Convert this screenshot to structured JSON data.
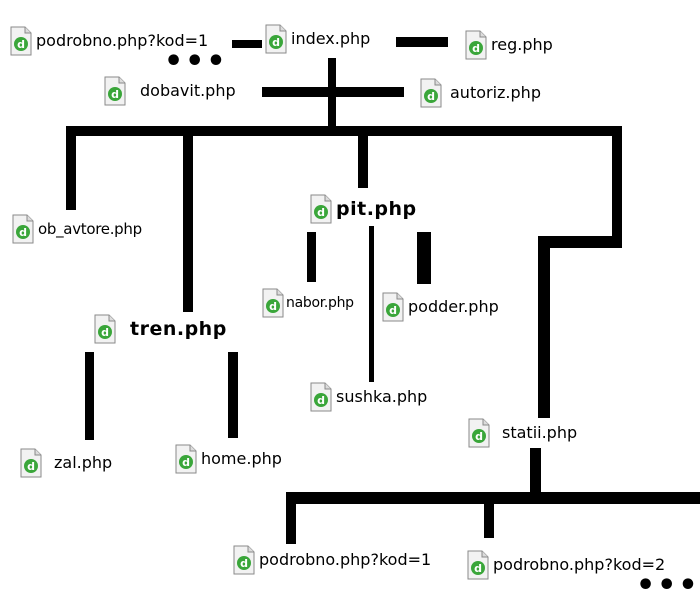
{
  "nodes": {
    "podrobno_top": "podrobno.php?kod=1",
    "index": "index.php",
    "reg": "reg.php",
    "dobavit": "dobavit.php",
    "autoriz": "autoriz.php",
    "ob_avtore": "ob_avtore.php",
    "pit": "pit.php",
    "tren": "tren.php",
    "nabor": "nabor.php",
    "podder": "podder.php",
    "sushka": "sushka.php",
    "zal": "zal.php",
    "home": "home.php",
    "statii": "statii.php",
    "podrobno_kod1": "podrobno.php?kod=1",
    "podrobno_kod2": "podrobno.php?kod=2"
  },
  "ellipsis": "•••",
  "icon": "dreamweaver-php-file-icon",
  "colors": {
    "line": "#000000",
    "icon_green": "#3aa63a",
    "icon_page": "#f2f2f2"
  }
}
